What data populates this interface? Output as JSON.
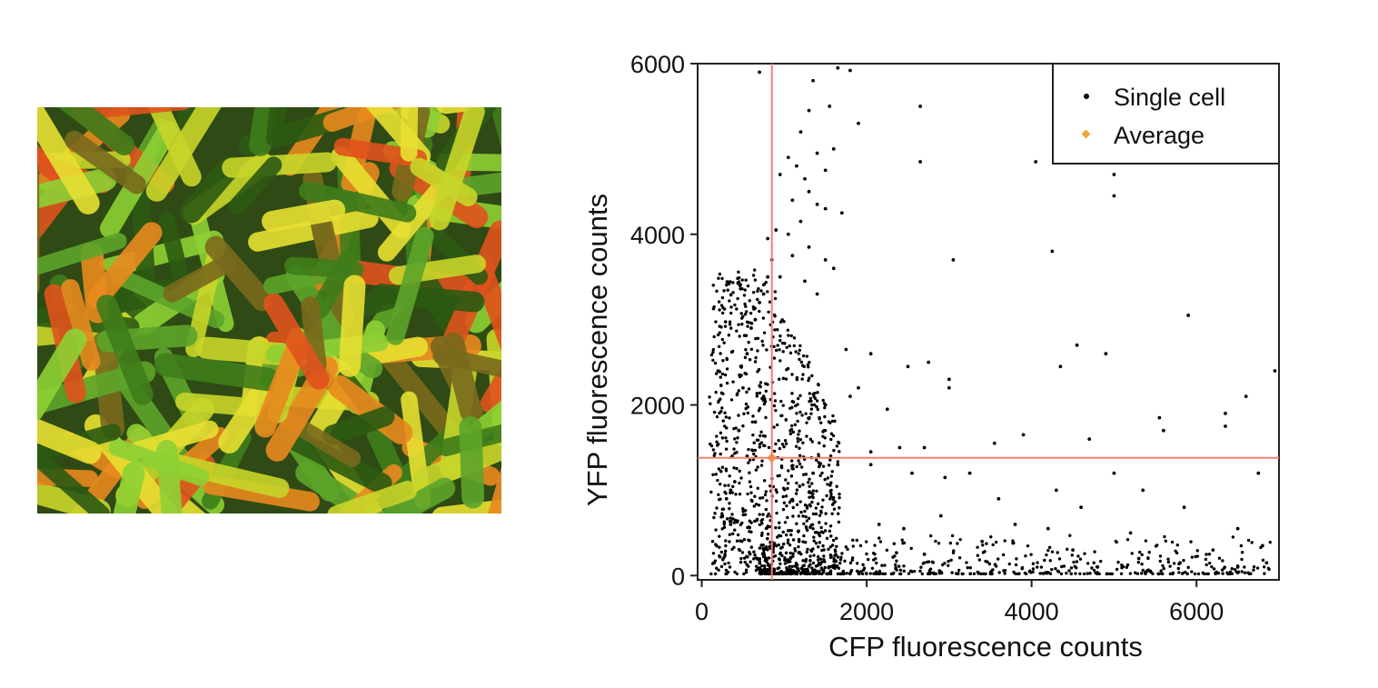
{
  "image_panel": {
    "description": "fluorescence micrograph of rod-shaped cells",
    "colors": [
      "#2c5a12",
      "#3f7d1a",
      "#5da52a",
      "#8ed134",
      "#c8d62a",
      "#e8e032",
      "#e98a1e",
      "#e0531c",
      "#7a6a1c"
    ]
  },
  "chart_data": {
    "type": "scatter",
    "title": "",
    "xlabel": "CFP fluorescence counts",
    "ylabel": "YFP fluorescence counts",
    "xlim": [
      -50,
      7000
    ],
    "ylim": [
      -50,
      6000
    ],
    "xticks": [
      0,
      2000,
      4000,
      6000
    ],
    "yticks": [
      0,
      2000,
      4000,
      6000
    ],
    "grid": false,
    "legend": {
      "placement": "top-right",
      "entries": [
        {
          "label": "Single cell",
          "marker": "dot",
          "color": "#000000"
        },
        {
          "label": "Average",
          "marker": "diamond",
          "color": "#e8a93a"
        }
      ]
    },
    "reference_lines": {
      "color": "#f08070",
      "vertical_x": 850,
      "horizontal_y": 1380
    },
    "series": [
      {
        "name": "Single cell",
        "color": "#000000",
        "points": [
          [
            700,
            5900
          ],
          [
            1650,
            5950
          ],
          [
            1800,
            5920
          ],
          [
            1350,
            5800
          ],
          [
            1550,
            5500
          ],
          [
            2650,
            5500
          ],
          [
            1300,
            5450
          ],
          [
            1900,
            5300
          ],
          [
            1200,
            5200
          ],
          [
            1400,
            4950
          ],
          [
            1600,
            5000
          ],
          [
            1050,
            4900
          ],
          [
            1150,
            4800
          ],
          [
            950,
            4700
          ],
          [
            1250,
            4650
          ],
          [
            1500,
            4750
          ],
          [
            1300,
            4500
          ],
          [
            1100,
            4400
          ],
          [
            1400,
            4350
          ],
          [
            1500,
            4300
          ],
          [
            1200,
            4150
          ],
          [
            1700,
            4250
          ],
          [
            900,
            4050
          ],
          [
            1050,
            4000
          ],
          [
            800,
            3950
          ],
          [
            1300,
            3850
          ],
          [
            1500,
            3700
          ],
          [
            1600,
            3600
          ],
          [
            1100,
            3750
          ],
          [
            950,
            3500
          ],
          [
            1250,
            3450
          ],
          [
            1400,
            3300
          ],
          [
            3050,
            3700
          ],
          [
            4250,
            3800
          ],
          [
            2650,
            4850
          ],
          [
            4050,
            4850
          ],
          [
            5000,
            4700
          ],
          [
            5000,
            4450
          ],
          [
            1750,
            2650
          ],
          [
            2050,
            2600
          ],
          [
            1900,
            2200
          ],
          [
            5900,
            3050
          ],
          [
            4550,
            2700
          ],
          [
            4900,
            2600
          ],
          [
            4350,
            2450
          ],
          [
            2500,
            2450
          ],
          [
            2750,
            2500
          ],
          [
            3000,
            2300
          ],
          [
            3000,
            2200
          ],
          [
            6950,
            2400
          ],
          [
            2250,
            1950
          ],
          [
            1800,
            2100
          ],
          [
            1500,
            2000
          ],
          [
            6350,
            1900
          ],
          [
            6350,
            1750
          ],
          [
            6600,
            2100
          ],
          [
            5550,
            1850
          ],
          [
            5600,
            1700
          ],
          [
            4700,
            1600
          ],
          [
            3900,
            1650
          ],
          [
            3550,
            1550
          ],
          [
            2400,
            1500
          ],
          [
            2700,
            1500
          ],
          [
            2050,
            1450
          ],
          [
            1650,
            1300
          ],
          [
            1350,
            1200
          ],
          [
            2050,
            1300
          ],
          [
            2550,
            1200
          ],
          [
            2950,
            1150
          ],
          [
            3250,
            1200
          ],
          [
            5000,
            1200
          ],
          [
            6750,
            1200
          ],
          [
            5350,
            1000
          ],
          [
            4300,
            1000
          ],
          [
            4600,
            800
          ],
          [
            3600,
            900
          ],
          [
            2900,
            700
          ],
          [
            2150,
            600
          ],
          [
            2450,
            550
          ],
          [
            3800,
            600
          ],
          [
            4200,
            550
          ],
          [
            5200,
            500
          ],
          [
            6500,
            550
          ],
          [
            5850,
            800
          ],
          [
            6800,
            350
          ],
          [
            3400,
            400
          ],
          [
            2700,
            250
          ],
          [
            4500,
            300
          ],
          [
            6200,
            300
          ],
          [
            5300,
            200
          ],
          [
            6850,
            150
          ],
          [
            6500,
            100
          ],
          [
            5800,
            150
          ],
          [
            4800,
            100
          ],
          [
            150,
            150
          ],
          [
            250,
            700
          ],
          [
            300,
            900
          ],
          [
            350,
            1000
          ],
          [
            400,
            1100
          ],
          [
            450,
            1700
          ],
          [
            500,
            2200
          ],
          [
            550,
            2600
          ],
          [
            600,
            2900
          ],
          [
            650,
            3000
          ],
          [
            700,
            3200
          ],
          [
            750,
            3300
          ],
          [
            800,
            3500
          ],
          [
            850,
            3700
          ],
          [
            550,
            1400
          ],
          [
            650,
            1800
          ],
          [
            750,
            2100
          ],
          [
            350,
            600
          ]
        ]
      },
      {
        "name": "Average",
        "color": "#e8a93a",
        "points": [
          [
            850,
            1380
          ]
        ]
      }
    ]
  }
}
